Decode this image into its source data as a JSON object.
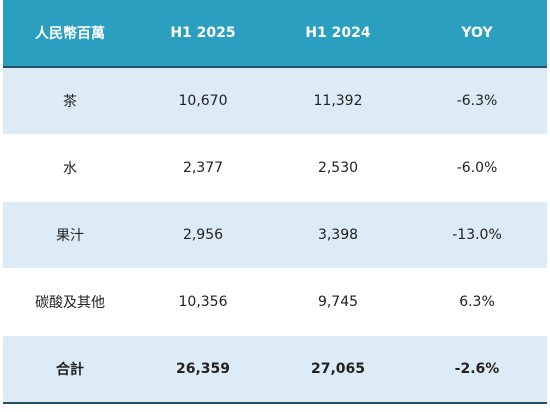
{
  "colors": {
    "header_bg": "#2b9fc0",
    "row_shade": "#dcebf5",
    "row_plain": "#ffffff",
    "rule": "#2a4d63"
  },
  "chart_data": {
    "type": "table",
    "columns": [
      "人民幣百萬",
      "H1 2025",
      "H1 2024",
      "YOY"
    ],
    "rows": [
      {
        "label": "茶",
        "h1_2025": "10,670",
        "h1_2024": "11,392",
        "yoy": "-6.3%"
      },
      {
        "label": "水",
        "h1_2025": "2,377",
        "h1_2024": "2,530",
        "yoy": "-6.0%"
      },
      {
        "label": "果汁",
        "h1_2025": "2,956",
        "h1_2024": "3,398",
        "yoy": "-13.0%"
      },
      {
        "label": "碳酸及其他",
        "h1_2025": "10,356",
        "h1_2024": "9,745",
        "yoy": "6.3%"
      }
    ],
    "total": {
      "label": "合計",
      "h1_2025": "26,359",
      "h1_2024": "27,065",
      "yoy": "-2.6%"
    }
  }
}
